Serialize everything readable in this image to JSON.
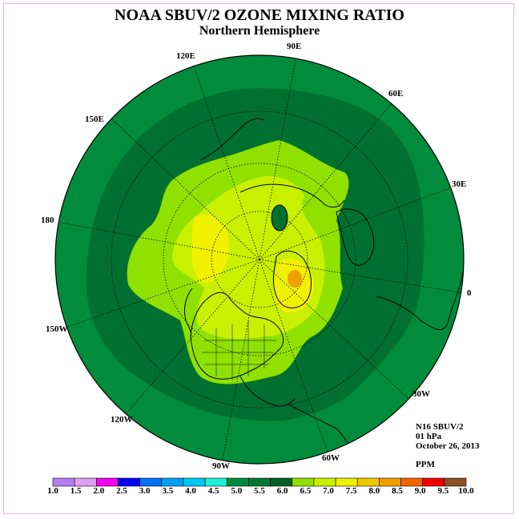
{
  "title": "NOAA SBUV/2 OZONE MIXING RATIO",
  "subtitle": "Northern Hemisphere",
  "meridian_labels": [
    "120E",
    "90E",
    "60E",
    "150E",
    "30E",
    "180",
    "0",
    "150W",
    "30W",
    "120W",
    "60W",
    "90W"
  ],
  "info": {
    "instrument": "N16 SBUV/2",
    "level": "01 hPa",
    "date": "October 26, 2013",
    "units": "PPM"
  },
  "colorbar": {
    "ticks": [
      "1.0",
      "1.5",
      "2.0",
      "2.5",
      "3.0",
      "3.5",
      "4.0",
      "4.5",
      "5.0",
      "5.5",
      "6.0",
      "6.5",
      "7.0",
      "7.5",
      "8.0",
      "8.5",
      "9.0",
      "9.5",
      "10.0"
    ],
    "colors": [
      "#b87ef0",
      "#e0a0f0",
      "#f000f0",
      "#0000f0",
      "#0070f0",
      "#00a0f0",
      "#00c8f0",
      "#20f0d8",
      "#008c3c",
      "#007830",
      "#006024",
      "#90e000",
      "#c8f000",
      "#f0f000",
      "#f0c800",
      "#f09c00",
      "#f06400",
      "#f00000",
      "#8c5028"
    ]
  },
  "contour_colors": {
    "outer": "#008c3c",
    "dark": "#007030",
    "lime": "#90e000",
    "yellowgreen": "#c8f000",
    "yellow": "#f0f000",
    "orange": "#f0a000"
  }
}
